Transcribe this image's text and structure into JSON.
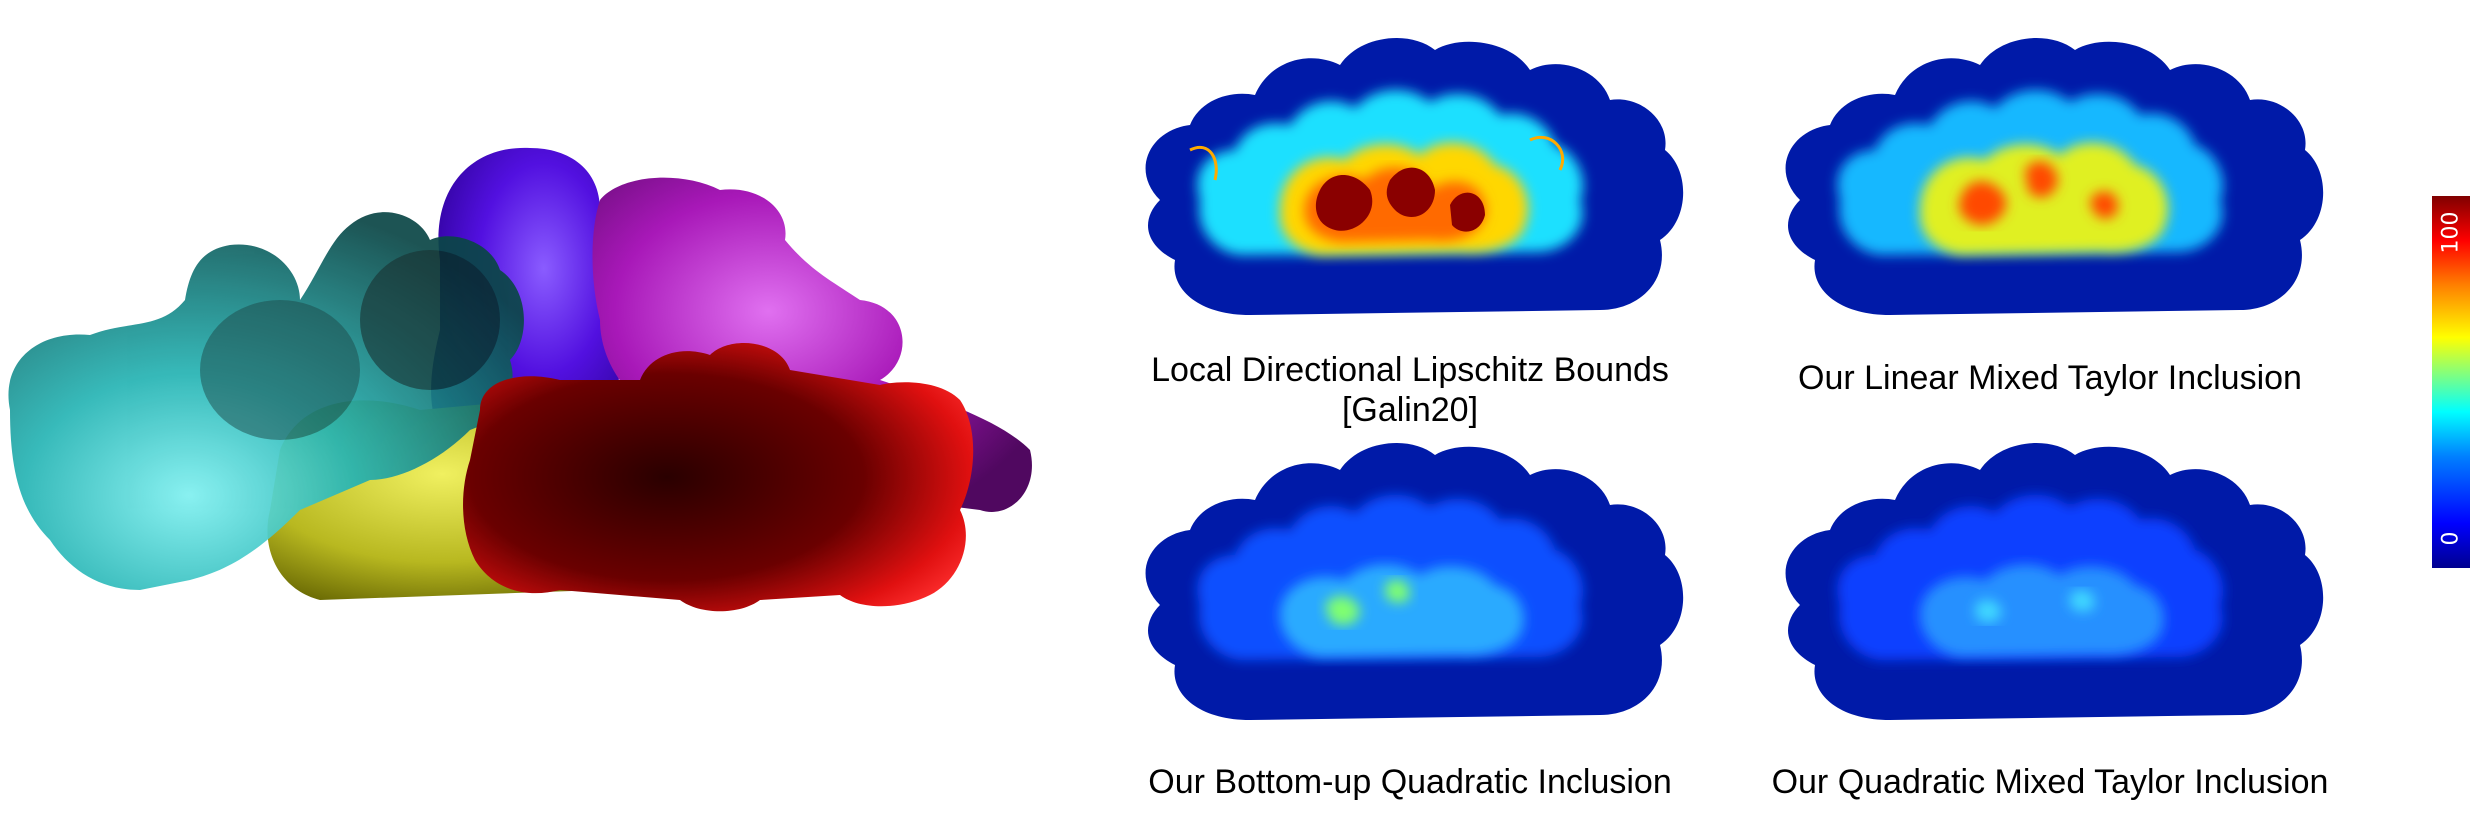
{
  "figure": {
    "panels": [
      {
        "id": "lipschitz",
        "caption_line1": "Local Directional Lipschitz Bounds",
        "caption_line2": "[Galin20]",
        "intensity": "high"
      },
      {
        "id": "linear-taylor",
        "caption_line1": "Our Linear Mixed Taylor Inclusion",
        "intensity": "medium-high"
      },
      {
        "id": "bottom-up",
        "caption_line1": "Our Bottom-up Quadratic Inclusion",
        "intensity": "low"
      },
      {
        "id": "quadratic-taylor",
        "caption_line1": "Our Quadratic Mixed Taylor Inclusion",
        "intensity": "lowest"
      }
    ],
    "colorbar": {
      "min_label": "0",
      "max_label": "100",
      "colormap": "jet"
    },
    "bears": [
      {
        "name": "cyan-bear",
        "color": "#19a0a0"
      },
      {
        "name": "purple-bear",
        "color": "#5a1ae6"
      },
      {
        "name": "magenta-bear",
        "color": "#b01cc0"
      },
      {
        "name": "yellow-bear",
        "color": "#c8c81a"
      },
      {
        "name": "red-bear",
        "color": "#e00e0e"
      }
    ]
  }
}
